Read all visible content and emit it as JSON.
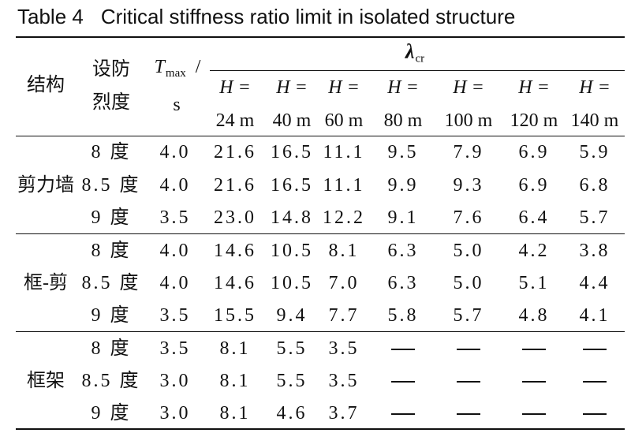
{
  "caption": {
    "label": "Table 4",
    "title": "Critical stiffness ratio limit in isolated structure"
  },
  "header": {
    "structure": "结构",
    "intensity_line1": "设防",
    "intensity_line2": "烈度",
    "tmax_symbol": "T",
    "tmax_subscript": "max",
    "tmax_slash": "/",
    "tmax_unit": "s",
    "lambda_symbol": "λ",
    "lambda_subscript": "cr",
    "height_symbol": "H =",
    "heights": [
      "24 m",
      "40 m",
      "60 m",
      "80 m",
      "100 m",
      "120 m",
      "140 m"
    ]
  },
  "groups": [
    {
      "structure": "剪力墙",
      "rows": [
        {
          "intensity": "8 度",
          "tmax": "4.0",
          "values": [
            "21.6",
            "16.5",
            "11.1",
            "9.5",
            "7.9",
            "6.9",
            "5.9"
          ]
        },
        {
          "intensity": "8.5 度",
          "tmax": "4.0",
          "values": [
            "21.6",
            "16.5",
            "11.1",
            "9.9",
            "9.3",
            "6.9",
            "6.8"
          ]
        },
        {
          "intensity": "9 度",
          "tmax": "3.5",
          "values": [
            "23.0",
            "14.8",
            "12.2",
            "9.1",
            "7.6",
            "6.4",
            "5.7"
          ]
        }
      ]
    },
    {
      "structure": "框-剪",
      "rows": [
        {
          "intensity": "8 度",
          "tmax": "4.0",
          "values": [
            "14.6",
            "10.5",
            "8.1",
            "6.3",
            "5.0",
            "4.2",
            "3.8"
          ]
        },
        {
          "intensity": "8.5 度",
          "tmax": "4.0",
          "values": [
            "14.6",
            "10.5",
            "7.0",
            "6.3",
            "5.0",
            "5.1",
            "4.4"
          ]
        },
        {
          "intensity": "9 度",
          "tmax": "3.5",
          "values": [
            "15.5",
            "9.4",
            "7.7",
            "5.8",
            "5.7",
            "4.8",
            "4.1"
          ]
        }
      ]
    },
    {
      "structure": "框架",
      "rows": [
        {
          "intensity": "8 度",
          "tmax": "3.5",
          "values": [
            "8.1",
            "5.5",
            "3.5",
            "—",
            "—",
            "—",
            "—"
          ]
        },
        {
          "intensity": "8.5 度",
          "tmax": "3.0",
          "values": [
            "8.1",
            "5.5",
            "3.5",
            "—",
            "—",
            "—",
            "—"
          ]
        },
        {
          "intensity": "9 度",
          "tmax": "3.0",
          "values": [
            "8.1",
            "4.6",
            "3.7",
            "—",
            "—",
            "—",
            "—"
          ]
        }
      ]
    }
  ]
}
